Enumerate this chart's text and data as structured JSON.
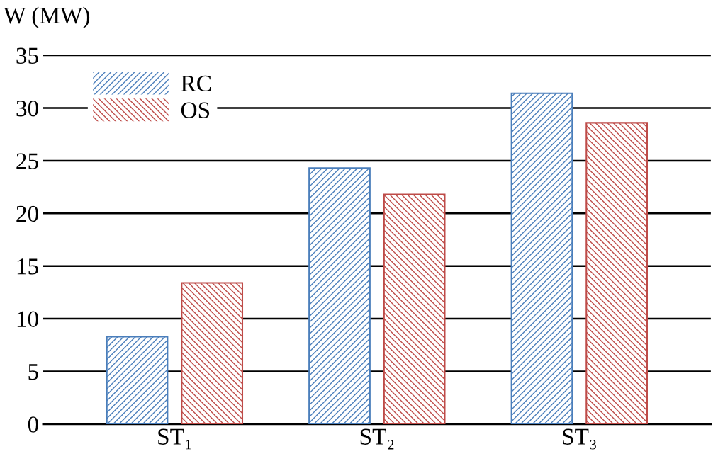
{
  "chart_data": {
    "type": "bar",
    "ylabel": "W (MW)",
    "categories": [
      "ST₁",
      "ST₂",
      "ST₃"
    ],
    "series": [
      {
        "name": "RC",
        "color": "#4a7ebb",
        "values": [
          8.3,
          24.3,
          31.4
        ]
      },
      {
        "name": "OS",
        "color": "#be4b48",
        "values": [
          13.4,
          21.8,
          28.6
        ]
      }
    ],
    "ylim": [
      0,
      35
    ],
    "yticks": [
      0,
      5,
      10,
      15,
      20,
      25,
      30,
      35
    ],
    "grid": "y",
    "legend": "top left"
  }
}
